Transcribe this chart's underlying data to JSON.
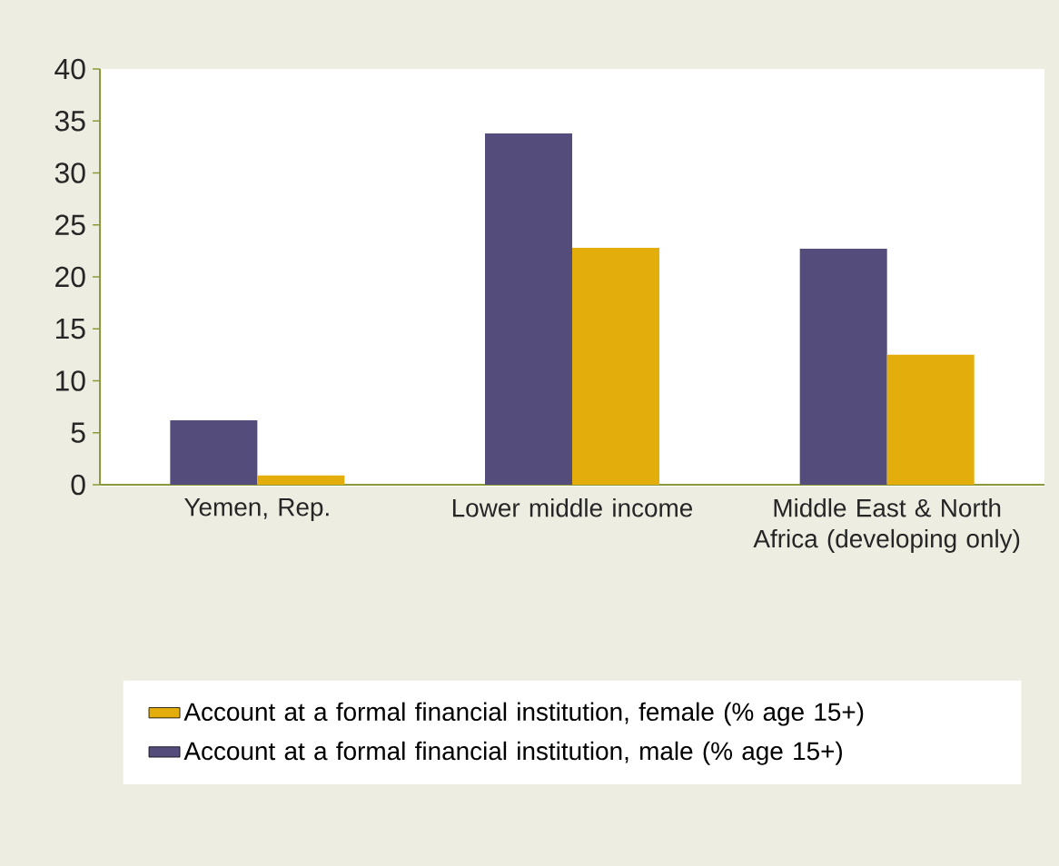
{
  "chart_data": {
    "type": "bar",
    "categories": [
      "Yemen, Rep.",
      "Lower middle income",
      "Middle East & North Africa (developing only)"
    ],
    "series": [
      {
        "name": "Account at a formal financial institution, male (% age 15+)",
        "color": "#544d7c",
        "values": [
          6.2,
          33.8,
          22.7
        ]
      },
      {
        "name": "Account at a formal financial institution, female (% age 15+)",
        "color": "#e3ad0c",
        "values": [
          0.9,
          22.8,
          12.5
        ]
      }
    ],
    "ylim": [
      0,
      40
    ],
    "yticks": [
      0,
      5,
      10,
      15,
      20,
      25,
      30,
      35,
      40
    ],
    "grid": false,
    "legend": "bottom"
  }
}
